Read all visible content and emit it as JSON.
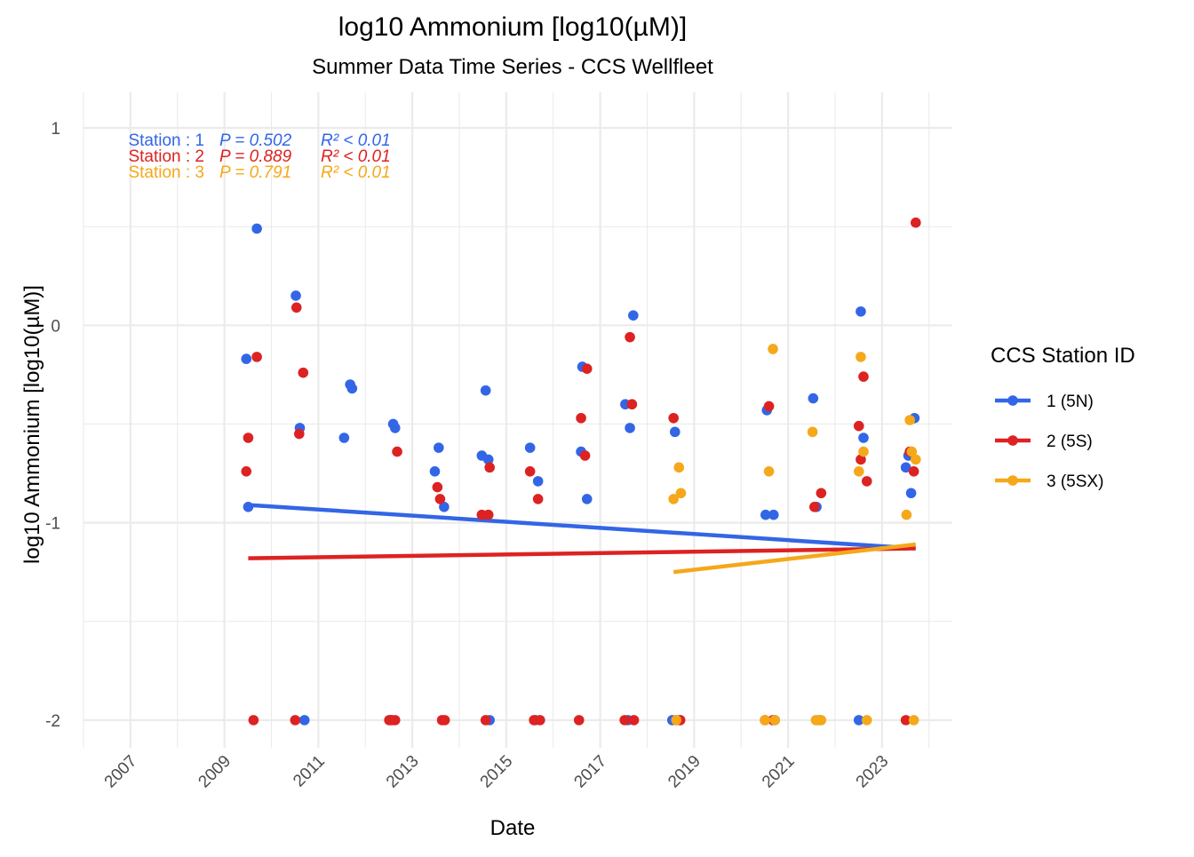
{
  "chart_data": {
    "type": "scatter",
    "title": "log10 Ammonium [log10(µM)]",
    "subtitle": "Summer Data Time Series - CCS Wellfleet",
    "xlabel": "Date",
    "ylabel": "log10 Ammonium [log10(µM)]",
    "xlim": [
      "2006-01-01",
      "2024-07-01"
    ],
    "ylim": [
      -2.14,
      1.18
    ],
    "x_ticks": [
      "2007",
      "2009",
      "2011",
      "2013",
      "2015",
      "2017",
      "2019",
      "2021",
      "2023"
    ],
    "y_ticks": [
      1,
      0,
      -1,
      -2
    ],
    "y_tick_labels": [
      "1",
      "0",
      "-1",
      "-2"
    ],
    "grid": true,
    "legend": {
      "title": "CCS Station ID",
      "position": "right"
    },
    "stats_annotations": [
      {
        "station": "Station : 1",
        "p": "P = 0.502",
        "r2": "R² < 0.01",
        "color": "#3366e6"
      },
      {
        "station": "Station : 2",
        "p": "P = 0.889",
        "r2": "R² < 0.01",
        "color": "#dd2222"
      },
      {
        "station": "Station : 3",
        "p": "P = 0.791",
        "r2": "R² < 0.01",
        "color": "#f5a81a"
      }
    ],
    "series": [
      {
        "name": "1 (5N)",
        "color": "#3366e6",
        "points": [
          [
            "2009-06-20",
            -0.17
          ],
          [
            "2009-07-05",
            -0.92
          ],
          [
            "2009-09-10",
            0.49
          ],
          [
            "2010-07-10",
            0.15
          ],
          [
            "2010-08-10",
            -0.52
          ],
          [
            "2010-09-15",
            -2.0
          ],
          [
            "2011-07-20",
            -0.57
          ],
          [
            "2011-09-05",
            -0.3
          ],
          [
            "2011-09-20",
            -0.32
          ],
          [
            "2012-07-15",
            -2.0
          ],
          [
            "2012-08-05",
            -0.5
          ],
          [
            "2012-08-20",
            -0.52
          ],
          [
            "2013-06-25",
            -0.74
          ],
          [
            "2013-07-25",
            -0.62
          ],
          [
            "2013-09-05",
            -0.92
          ],
          [
            "2014-06-25",
            -0.66
          ],
          [
            "2014-07-25",
            -0.33
          ],
          [
            "2014-08-15",
            -0.68
          ],
          [
            "2014-08-25",
            -2.0
          ],
          [
            "2015-07-05",
            -0.62
          ],
          [
            "2015-09-05",
            -0.79
          ],
          [
            "2015-08-15",
            -2.0
          ],
          [
            "2016-08-05",
            -0.64
          ],
          [
            "2016-08-15",
            -0.21
          ],
          [
            "2016-09-20",
            -0.88
          ],
          [
            "2017-07-15",
            -0.4
          ],
          [
            "2017-08-20",
            -0.52
          ],
          [
            "2017-09-15",
            0.05
          ],
          [
            "2017-08-05",
            -2.0
          ],
          [
            "2018-08-05",
            -0.54
          ],
          [
            "2018-07-15",
            -2.0
          ],
          [
            "2018-09-10",
            -2.0
          ],
          [
            "2020-07-10",
            -0.96
          ],
          [
            "2020-07-20",
            -0.43
          ],
          [
            "2020-09-10",
            -0.96
          ],
          [
            "2020-09-20",
            -2.0
          ],
          [
            "2021-07-15",
            -0.37
          ],
          [
            "2021-08-10",
            -0.92
          ],
          [
            "2021-09-05",
            -2.0
          ],
          [
            "2022-07-05",
            -2.0
          ],
          [
            "2022-07-20",
            0.07
          ],
          [
            "2022-08-10",
            -0.57
          ],
          [
            "2023-07-05",
            -0.72
          ],
          [
            "2023-07-25",
            -0.66
          ],
          [
            "2023-08-15",
            -0.85
          ],
          [
            "2023-09-10",
            -0.47
          ]
        ],
        "trend": [
          [
            "2009-07-05",
            -0.91
          ],
          [
            "2023-09-10",
            -1.13
          ]
        ]
      },
      {
        "name": "2 (5S)",
        "color": "#dd2222",
        "points": [
          [
            "2009-06-20",
            -0.74
          ],
          [
            "2009-07-05",
            -0.57
          ],
          [
            "2009-08-15",
            -2.0
          ],
          [
            "2009-09-10",
            -0.16
          ],
          [
            "2010-07-05",
            -2.0
          ],
          [
            "2010-07-15",
            0.09
          ],
          [
            "2010-08-05",
            -0.55
          ],
          [
            "2010-09-05",
            -0.24
          ],
          [
            "2012-07-05",
            -2.0
          ],
          [
            "2012-07-25",
            -2.0
          ],
          [
            "2012-08-20",
            -2.0
          ],
          [
            "2012-09-05",
            -0.64
          ],
          [
            "2013-07-15",
            -0.82
          ],
          [
            "2013-08-05",
            -0.88
          ],
          [
            "2013-08-20",
            -2.0
          ],
          [
            "2013-09-10",
            -2.0
          ],
          [
            "2014-06-25",
            -0.96
          ],
          [
            "2014-07-25",
            -2.0
          ],
          [
            "2014-08-15",
            -0.96
          ],
          [
            "2014-08-25",
            -0.72
          ],
          [
            "2015-07-05",
            -0.74
          ],
          [
            "2015-08-05",
            -2.0
          ],
          [
            "2015-09-05",
            -0.88
          ],
          [
            "2015-09-20",
            -2.0
          ],
          [
            "2016-07-20",
            -2.0
          ],
          [
            "2016-08-05",
            -0.47
          ],
          [
            "2016-09-05",
            -0.66
          ],
          [
            "2016-09-20",
            -0.22
          ],
          [
            "2017-07-10",
            -2.0
          ],
          [
            "2017-08-20",
            -0.06
          ],
          [
            "2017-09-05",
            -0.4
          ],
          [
            "2017-09-20",
            -2.0
          ],
          [
            "2018-07-25",
            -0.47
          ],
          [
            "2018-08-15",
            -2.0
          ],
          [
            "2018-09-15",
            -2.0
          ],
          [
            "2020-07-05",
            -2.0
          ],
          [
            "2020-08-05",
            -0.41
          ],
          [
            "2020-09-05",
            -2.0
          ],
          [
            "2021-07-25",
            -0.92
          ],
          [
            "2021-09-15",
            -0.85
          ],
          [
            "2022-07-05",
            -0.51
          ],
          [
            "2022-07-20",
            -0.68
          ],
          [
            "2022-08-10",
            -0.26
          ],
          [
            "2022-09-05",
            -0.79
          ],
          [
            "2023-07-05",
            -2.0
          ],
          [
            "2023-08-05",
            -0.64
          ],
          [
            "2023-09-05",
            -0.74
          ],
          [
            "2023-09-20",
            0.52
          ]
        ],
        "trend": [
          [
            "2009-07-05",
            -1.18
          ],
          [
            "2023-09-20",
            -1.13
          ]
        ]
      },
      {
        "name": "3 (5SX)",
        "color": "#f5a81a",
        "points": [
          [
            "2018-07-25",
            -0.88
          ],
          [
            "2018-08-15",
            -2.0
          ],
          [
            "2018-09-05",
            -0.72
          ],
          [
            "2018-09-20",
            -0.85
          ],
          [
            "2020-07-05",
            -2.0
          ],
          [
            "2020-08-05",
            -0.74
          ],
          [
            "2020-09-05",
            -0.12
          ],
          [
            "2020-09-20",
            -2.0
          ],
          [
            "2021-07-10",
            -0.54
          ],
          [
            "2021-08-05",
            -2.0
          ],
          [
            "2021-08-20",
            -2.0
          ],
          [
            "2021-09-15",
            -2.0
          ],
          [
            "2022-07-05",
            -0.74
          ],
          [
            "2022-07-20",
            -0.16
          ],
          [
            "2022-08-10",
            -0.64
          ],
          [
            "2022-09-05",
            -2.0
          ],
          [
            "2023-07-10",
            -0.96
          ],
          [
            "2023-08-05",
            -0.48
          ],
          [
            "2023-08-20",
            -0.64
          ],
          [
            "2023-09-05",
            -2.0
          ],
          [
            "2023-09-20",
            -0.68
          ]
        ],
        "trend": [
          [
            "2018-07-25",
            -1.25
          ],
          [
            "2023-09-20",
            -1.11
          ]
        ]
      }
    ]
  }
}
